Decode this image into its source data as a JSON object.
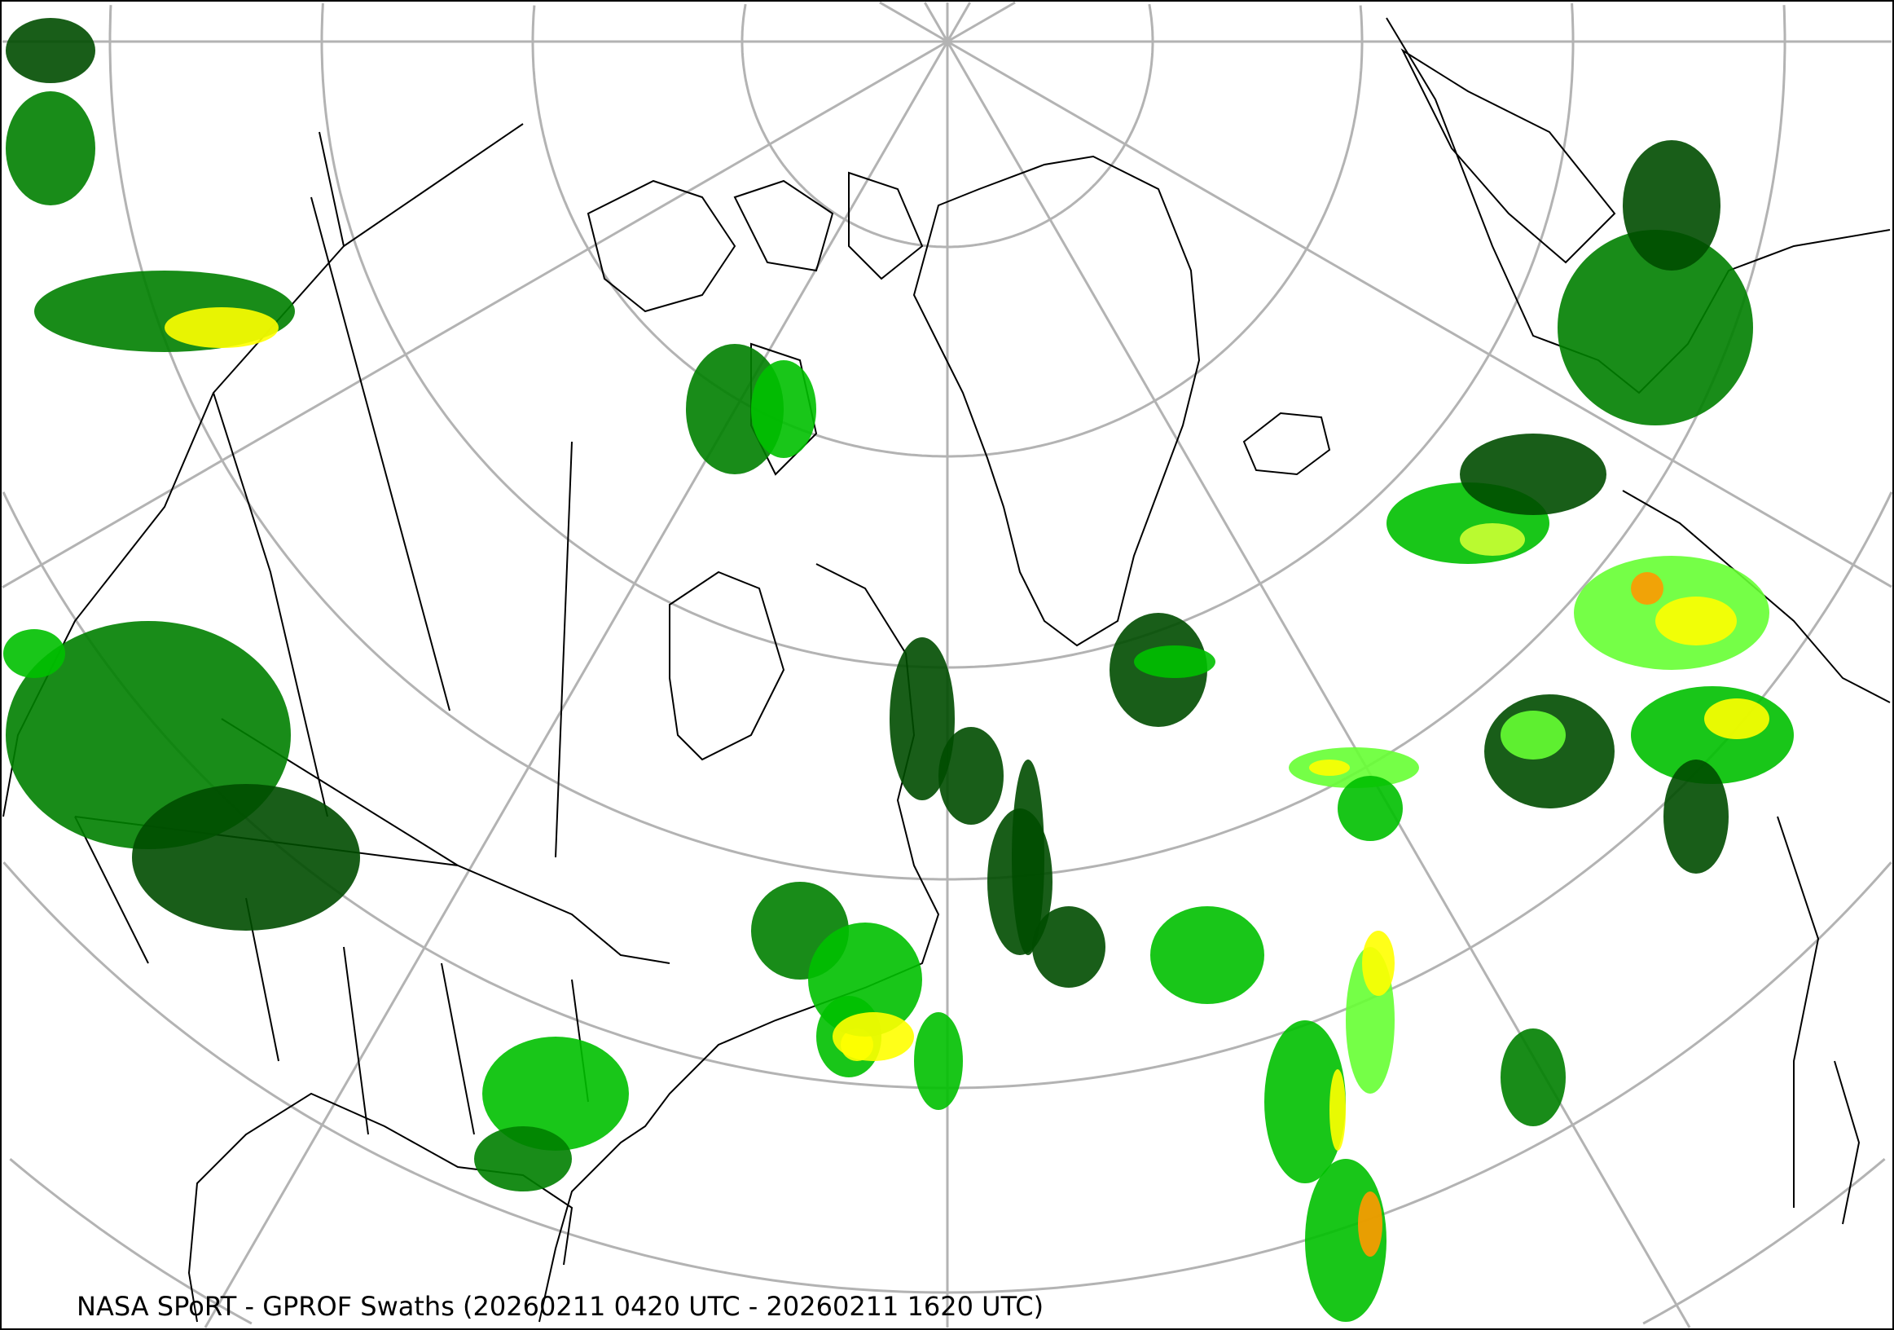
{
  "title": "NASA SPoRT - GPROF Swaths (20260211 0420 UTC - 20260211 1620 UTC)",
  "map": {
    "projection": "north-polar-stereographic",
    "graticule_color": "#b3b3b3",
    "coastline_color": "#000000",
    "precip_colors": [
      "#004d00",
      "#008000",
      "#00c000",
      "#66ff33",
      "#ccff33",
      "#ffff00",
      "#ff9900",
      "#ff3300"
    ]
  }
}
